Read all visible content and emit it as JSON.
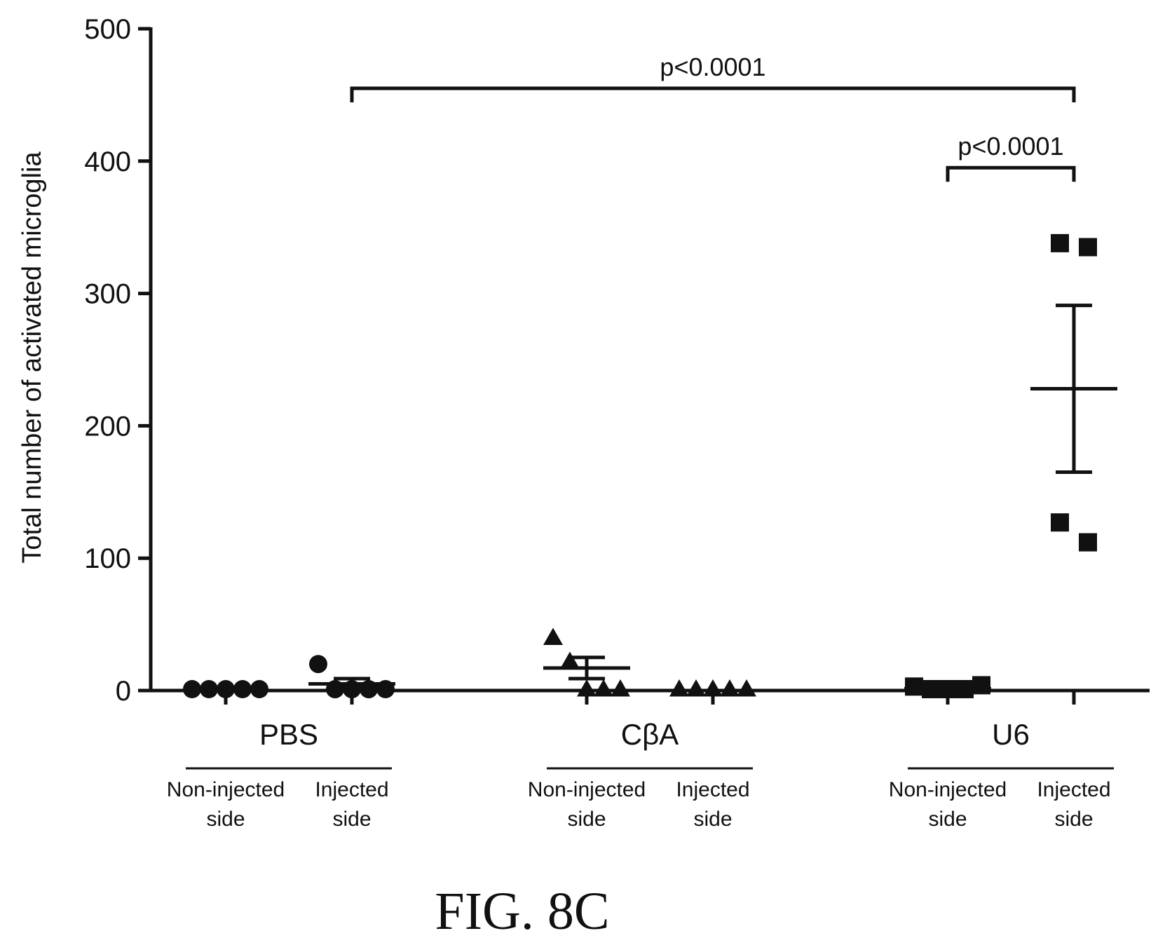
{
  "chart_data": {
    "type": "scatter",
    "ylabel": "Total number of activated microglia",
    "xlabel": "",
    "ylim": [
      0,
      500
    ],
    "yticks": [
      0,
      100,
      200,
      300,
      400,
      500
    ],
    "grid": false,
    "figure_label": "FIG. 8C",
    "groups": [
      {
        "name": "PBS",
        "marker": "circle",
        "conditions": [
          {
            "label_line1": "Non-injected",
            "label_line2": "side",
            "values": [
              0,
              0,
              0,
              0,
              0
            ],
            "mean": 0,
            "sem": 0
          },
          {
            "label_line1": "Injected",
            "label_line2": "side",
            "values": [
              20,
              1,
              1,
              1,
              0
            ],
            "mean": 5,
            "sem": 4
          }
        ]
      },
      {
        "name": "CβA",
        "marker": "triangle",
        "conditions": [
          {
            "label_line1": "Non-injected",
            "label_line2": "side",
            "values": [
              40,
              22,
              0,
              0,
              0
            ],
            "mean": 17,
            "sem": 8
          },
          {
            "label_line1": "Injected",
            "label_line2": "side",
            "values": [
              0,
              0,
              0,
              0,
              0
            ],
            "mean": 0,
            "sem": 0
          }
        ]
      },
      {
        "name": "U6",
        "marker": "square",
        "conditions": [
          {
            "label_line1": "Non-injected",
            "label_line2": "side",
            "values": [
              3,
              0,
              0,
              0,
              4
            ],
            "mean": 1.4,
            "sem": 0.9
          },
          {
            "label_line1": "Injected",
            "label_line2": "side",
            "values": [
              338,
              335,
              127,
              112
            ],
            "mean": 228,
            "sem": 63
          }
        ]
      }
    ],
    "annotations": [
      {
        "text": "p<0.0001",
        "from": "PBS Injected side",
        "to": "U6 Injected side",
        "y": 455
      },
      {
        "text": "p<0.0001",
        "from": "U6 Non-injected side",
        "to": "U6 Injected side",
        "y": 395
      }
    ]
  }
}
